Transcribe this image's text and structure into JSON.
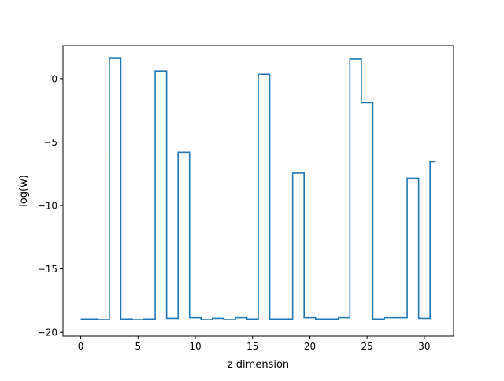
{
  "chart_data": {
    "type": "line",
    "drawstyle": "steps-mid",
    "title": "",
    "xlabel": "z dimension",
    "ylabel": "log(w)",
    "xlim": [
      -1.55,
      32.55
    ],
    "ylim": [
      -20.3,
      2.6
    ],
    "xticks": [
      0,
      5,
      10,
      15,
      20,
      25,
      30
    ],
    "yticks": [
      -20,
      -15,
      -10,
      -5,
      0
    ],
    "xtick_labels": [
      "0",
      "5",
      "10",
      "15",
      "20",
      "25",
      "30"
    ],
    "ytick_labels": [
      "−20",
      "−15",
      "−10",
      "−5",
      "0"
    ],
    "grid": false,
    "line_color": "#1f77b4",
    "series": [
      {
        "x": [
          0,
          1,
          2,
          3,
          4,
          5,
          6,
          7,
          8,
          9,
          10,
          11,
          12,
          13,
          14,
          15,
          16,
          17,
          18,
          19,
          20,
          21,
          22,
          23,
          24,
          25,
          26,
          27,
          28,
          29,
          30,
          31
        ],
        "values": [
          -18.95,
          -18.95,
          -19.0,
          1.6,
          -18.95,
          -19.0,
          -18.95,
          0.6,
          -18.9,
          -5.8,
          -18.85,
          -19.0,
          -18.9,
          -19.0,
          -18.85,
          -18.95,
          0.35,
          -18.95,
          -18.95,
          -7.45,
          -18.85,
          -18.95,
          -18.95,
          -18.85,
          1.55,
          -1.9,
          -18.95,
          -18.85,
          -18.85,
          -7.85,
          -18.9,
          -6.55
        ]
      }
    ]
  }
}
